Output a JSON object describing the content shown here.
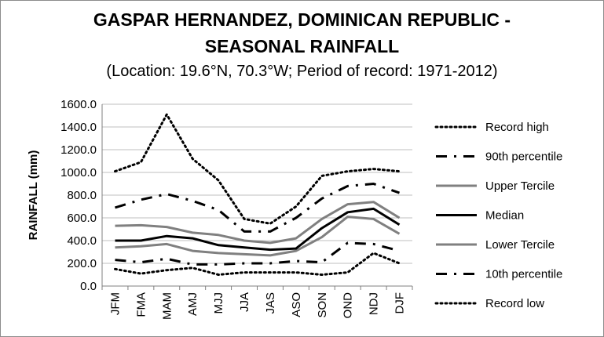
{
  "chart_data": {
    "type": "line",
    "title_line1": "GASPAR HERNANDEZ, DOMINICAN REPUBLIC -",
    "title_line2": "SEASONAL RAINFALL",
    "subtitle": "(Location: 19.6°N, 70.3°W; Period of record: 1971-2012)",
    "ylabel": "RAINFALL (mm)",
    "xlabel": "",
    "ylim": [
      0,
      1600
    ],
    "yticks": [
      "0.0",
      "200.0",
      "400.0",
      "600.0",
      "800.0",
      "1000.0",
      "1200.0",
      "1400.0",
      "1600.0"
    ],
    "categories": [
      "JFM",
      "FMA",
      "MAM",
      "AMJ",
      "MJJ",
      "JJA",
      "JAS",
      "ASO",
      "SON",
      "OND",
      "NDJ",
      "DJF"
    ],
    "grid": true,
    "legend_position": "right",
    "series": [
      {
        "name": "Record high",
        "color": "#000000",
        "style": "dotted",
        "values": [
          1010,
          1090,
          1510,
          1120,
          930,
          590,
          550,
          700,
          970,
          1010,
          1030,
          1010
        ]
      },
      {
        "name": "90th percentile",
        "color": "#000000",
        "style": "dashdot",
        "values": [
          690,
          760,
          810,
          750,
          670,
          480,
          480,
          600,
          770,
          880,
          900,
          820
        ]
      },
      {
        "name": "Upper Tercile",
        "color": "#808080",
        "style": "solid",
        "values": [
          530,
          535,
          520,
          470,
          450,
          400,
          380,
          420,
          590,
          720,
          740,
          600
        ]
      },
      {
        "name": "Median",
        "color": "#000000",
        "style": "solid",
        "values": [
          400,
          400,
          440,
          420,
          360,
          340,
          320,
          330,
          510,
          650,
          680,
          540
        ]
      },
      {
        "name": "Lower Tercile",
        "color": "#808080",
        "style": "solid",
        "values": [
          340,
          350,
          370,
          310,
          290,
          280,
          270,
          310,
          430,
          610,
          590,
          460
        ]
      },
      {
        "name": "10th percentile",
        "color": "#000000",
        "style": "dashdot",
        "values": [
          230,
          210,
          240,
          190,
          190,
          200,
          200,
          220,
          210,
          380,
          370,
          310
        ]
      },
      {
        "name": "Record low",
        "color": "#000000",
        "style": "dotted",
        "values": [
          150,
          110,
          140,
          160,
          100,
          120,
          120,
          120,
          100,
          120,
          290,
          200
        ]
      }
    ]
  }
}
